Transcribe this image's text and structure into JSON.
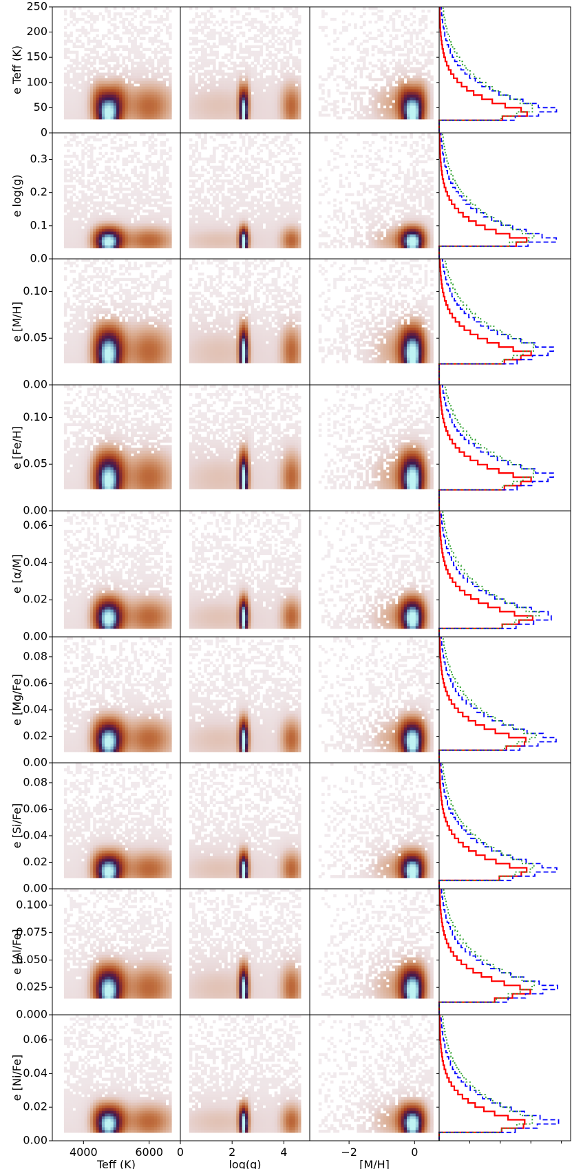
{
  "chart_data": {
    "type": "heatmap",
    "layout": "9 rows x 4 columns grid of density panels; last column holds step histograms of the row error",
    "x_columns": [
      {
        "label": "Teff (K)",
        "lim": [
          3050,
          6950
        ],
        "ticks": [
          4000,
          6000
        ],
        "tick_labels": [
          "4000",
          "6000"
        ]
      },
      {
        "label": "log(g)",
        "lim": [
          0,
          5.0
        ],
        "ticks": [
          0,
          2,
          4
        ],
        "tick_labels": [
          "0",
          "2",
          "4"
        ]
      },
      {
        "label": "[M/H]",
        "lim": [
          -3.2,
          0.75
        ],
        "ticks": [
          -2,
          0
        ],
        "tick_labels": [
          "−2",
          "0"
        ]
      },
      {
        "label": "",
        "lim": [
          0,
          1
        ],
        "ticks": [],
        "tick_labels": []
      }
    ],
    "rows": [
      {
        "ylabel": "e Teff (K)",
        "ylim": [
          0,
          250
        ],
        "yticks": [
          0,
          50,
          100,
          150,
          200,
          250
        ],
        "ytick_labels": [
          "0",
          "50",
          "100",
          "150",
          "200",
          "250"
        ],
        "peak": 40,
        "peak2": 63,
        "floor": 30
      },
      {
        "ylabel": "e log(g)",
        "ylim": [
          0,
          0.38
        ],
        "yticks": [
          0,
          0.1,
          0.2,
          0.3
        ],
        "ytick_labels": [
          "0.0",
          "0.1",
          "0.2",
          "0.3"
        ],
        "peak": 0.052,
        "peak2": 0.06,
        "floor": 0.04
      },
      {
        "ylabel": "e [M/H]",
        "ylim": [
          0,
          0.135
        ],
        "yticks": [
          0,
          0.05,
          0.1
        ],
        "ytick_labels": [
          "0.00",
          "0.05",
          "0.10"
        ],
        "peak": 0.033,
        "peak2": 0.04,
        "floor": 0.025
      },
      {
        "ylabel": "e [Fe/H]",
        "ylim": [
          0,
          0.135
        ],
        "yticks": [
          0,
          0.05,
          0.1
        ],
        "ytick_labels": [
          "0.00",
          "0.05",
          "0.10"
        ],
        "peak": 0.033,
        "peak2": 0.04,
        "floor": 0.025
      },
      {
        "ylabel": "e [α/M]",
        "ylim": [
          0,
          0.068
        ],
        "yticks": [
          0,
          0.02,
          0.04,
          0.06
        ],
        "ytick_labels": [
          "0.00",
          "0.02",
          "0.04",
          "0.06"
        ],
        "peak": 0.01,
        "peak2": 0.012,
        "floor": 0.005
      },
      {
        "ylabel": "e [Mg/Fe]",
        "ylim": [
          0,
          0.095
        ],
        "yticks": [
          0,
          0.02,
          0.04,
          0.06,
          0.08
        ],
        "ytick_labels": [
          "0.00",
          "0.02",
          "0.04",
          "0.06",
          "0.08"
        ],
        "peak": 0.016,
        "peak2": 0.02,
        "floor": 0.01
      },
      {
        "ylabel": "e [Si/Fe]",
        "ylim": [
          0,
          0.095
        ],
        "yticks": [
          0,
          0.02,
          0.04,
          0.06,
          0.08
        ],
        "ytick_labels": [
          "0.00",
          "0.02",
          "0.04",
          "0.06",
          "0.08"
        ],
        "peak": 0.013,
        "peak2": 0.017,
        "floor": 0.008
      },
      {
        "ylabel": "e [Al/Fe]",
        "ylim": [
          0,
          0.115
        ],
        "yticks": [
          0,
          0.025,
          0.05,
          0.075,
          0.1
        ],
        "ytick_labels": [
          "0.000",
          "0.025",
          "0.050",
          "0.075",
          "0.100"
        ],
        "peak": 0.022,
        "peak2": 0.028,
        "floor": 0.015
      },
      {
        "ylabel": "e [Ni/Fe]",
        "ylim": [
          0,
          0.075
        ],
        "yticks": [
          0,
          0.02,
          0.04,
          0.06
        ],
        "ytick_labels": [
          "0.00",
          "0.02",
          "0.04",
          "0.06"
        ],
        "peak": 0.01,
        "peak2": 0.013,
        "floor": 0.006
      }
    ],
    "density_clusters": {
      "teff": [
        {
          "x": 4750,
          "w": 300,
          "amp": 1.0
        },
        {
          "x": 6000,
          "w": 550,
          "amp": 0.35
        }
      ],
      "logg": [
        {
          "x": 2.45,
          "w": 0.12,
          "amp": 1.0
        },
        {
          "x": 4.3,
          "w": 0.3,
          "amp": 0.35
        },
        {
          "x": 1.5,
          "w": 1.2,
          "amp": 0.12
        }
      ],
      "mh": [
        {
          "x": -0.05,
          "w": 0.25,
          "amp": 1.0
        },
        {
          "x": -0.7,
          "w": 0.5,
          "amp": 0.2
        }
      ]
    },
    "histograms": {
      "series_styles": [
        {
          "color": "#ff0000",
          "dash": "solid",
          "width": 2.2
        },
        {
          "color": "#0000ff",
          "dash": "7,4",
          "width": 1.8
        },
        {
          "color": "#2ca02c",
          "dash": "2,3",
          "width": 1.8
        }
      ],
      "shape_note": "normalised step histograms of the row error, peaked near the row's typical error with a long tail to large values"
    },
    "colors": {
      "cmap": [
        "#f2ecef",
        "#e8d6d6",
        "#d9a98c",
        "#c07040",
        "#a8401e",
        "#6a1d3c",
        "#3a1a52",
        "#6a9fc0",
        "#bff3f3"
      ]
    }
  }
}
